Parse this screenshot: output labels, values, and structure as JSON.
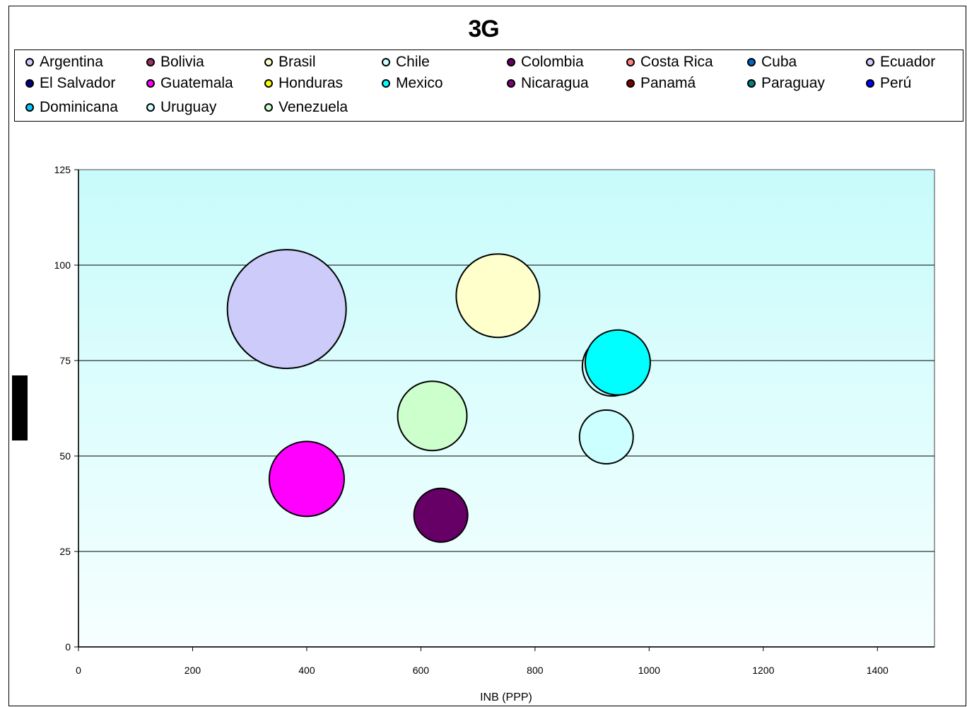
{
  "chart_data": {
    "type": "scatter",
    "title": "3G",
    "xlabel": "INB (PPP)",
    "ylabel": "",
    "xlim": [
      0,
      1500
    ],
    "ylim": [
      0,
      125
    ],
    "xticks": [
      0,
      200,
      400,
      600,
      800,
      1000,
      1200,
      1400
    ],
    "yticks": [
      0,
      25,
      50,
      75,
      100,
      125
    ],
    "grid": "horizontal",
    "legend_position": "top",
    "bubble_size_unit": "relative",
    "series": [
      {
        "name": "Argentina",
        "color": "#cccbf9"
      },
      {
        "name": "Bolivia",
        "color": "#993366"
      },
      {
        "name": "Brasil",
        "color": "#ffffcc"
      },
      {
        "name": "Chile",
        "color": "#ccffff"
      },
      {
        "name": "Colombia",
        "color": "#660066"
      },
      {
        "name": "Costa Rica",
        "color": "#ff8080"
      },
      {
        "name": "Cuba",
        "color": "#0066cc"
      },
      {
        "name": "Ecuador",
        "color": "#ccccff"
      },
      {
        "name": "El Salvador",
        "color": "#000080"
      },
      {
        "name": "Guatemala",
        "color": "#ff00ff"
      },
      {
        "name": "Honduras",
        "color": "#ffff00"
      },
      {
        "name": "Mexico",
        "color": "#00ffff"
      },
      {
        "name": "Nicaragua",
        "color": "#800080"
      },
      {
        "name": "Panamá",
        "color": "#800000"
      },
      {
        "name": "Paraguay",
        "color": "#008080"
      },
      {
        "name": "Perú",
        "color": "#0000ff"
      },
      {
        "name": "Dominicana",
        "color": "#00ccff"
      },
      {
        "name": "Uruguay",
        "color": "#ccffff"
      },
      {
        "name": "Venezuela",
        "color": "#ccffcc"
      }
    ],
    "points": [
      {
        "series": "Argentina",
        "x": 365,
        "y": 88.5,
        "size": 84
      },
      {
        "series": "Brasil",
        "x": 735,
        "y": 92,
        "size": 59
      },
      {
        "series": "Venezuela",
        "x": 620,
        "y": 60.5,
        "size": 49
      },
      {
        "series": "Guatemala",
        "x": 400,
        "y": 44,
        "size": 53
      },
      {
        "series": "Colombia",
        "x": 635,
        "y": 34.5,
        "size": 38
      },
      {
        "series": "Chile",
        "x": 935,
        "y": 73.5,
        "size": 42
      },
      {
        "series": "Mexico",
        "x": 945,
        "y": 74.5,
        "size": 46
      },
      {
        "series": "Uruguay",
        "x": 925,
        "y": 55,
        "size": 38
      }
    ]
  }
}
